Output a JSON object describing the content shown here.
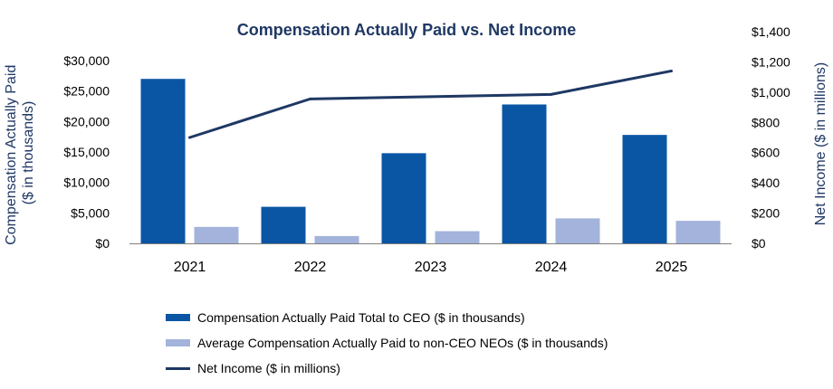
{
  "chart_data": {
    "type": "bar",
    "title": "Compensation Actually Paid vs. Net Income",
    "categories": [
      "2021",
      "2022",
      "2023",
      "2024",
      "2025"
    ],
    "series": [
      {
        "name": "Compensation Actually Paid Total to CEO ($ in thousands)",
        "type": "bar",
        "axis": "left",
        "values": [
          27000,
          6000,
          14800,
          22800,
          17800
        ],
        "color": "#0a56a5"
      },
      {
        "name": "Average Compensation Actually Paid to non-CEO NEOs ($ in thousands)",
        "type": "bar",
        "axis": "left",
        "values": [
          2700,
          1200,
          2000,
          4100,
          3700
        ],
        "color": "#a3b3db"
      },
      {
        "name": "Net Income ($ in millions)",
        "type": "line",
        "axis": "right",
        "values": [
          700,
          955,
          970,
          985,
          1140
        ],
        "color": "#1f3864"
      }
    ],
    "y_left": {
      "label": "Compensation Actually Paid ($ in thousands)",
      "label_lines": [
        "Compensation Actually Paid",
        "($ in thousands)"
      ],
      "min": 0,
      "max": 30000,
      "ticks": [
        0,
        5000,
        10000,
        15000,
        20000,
        25000,
        30000
      ],
      "tick_labels": [
        "$0",
        "$5,000",
        "$10,000",
        "$15,000",
        "$20,000",
        "$25,000",
        "$30,000"
      ]
    },
    "y_right": {
      "label": "Net Income ($ in millions)",
      "min": 0,
      "max": 1400,
      "ticks": [
        0,
        200,
        400,
        600,
        800,
        1000,
        1200,
        1400
      ],
      "tick_labels": [
        "$0",
        "$200",
        "$400",
        "$600",
        "$800",
        "$1,000",
        "$1,200",
        "$1,400"
      ]
    },
    "grid": false,
    "legend_position": "bottom"
  },
  "legend": [
    {
      "label": "Compensation Actually Paid Total to CEO ($ in thousands)",
      "kind": "bar",
      "color": "#0a56a5"
    },
    {
      "label": "Average Compensation Actually Paid to non-CEO NEOs ($ in thousands)",
      "kind": "bar",
      "color": "#a3b3db"
    },
    {
      "label": "Net Income ($ in millions)",
      "kind": "line",
      "color": "#1f3864"
    }
  ]
}
